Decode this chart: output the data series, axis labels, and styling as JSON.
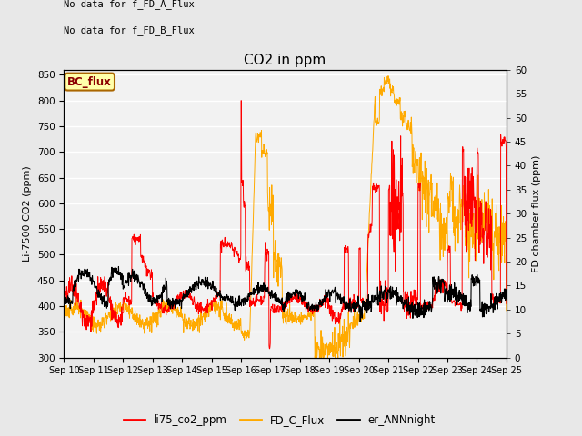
{
  "title": "CO2 in ppm",
  "ylabel_left": "Li-7500 CO2 (ppm)",
  "ylabel_right": "FD chamber flux (ppm)",
  "ylim_left": [
    300,
    860
  ],
  "ylim_right": [
    0,
    60
  ],
  "yticks_left": [
    300,
    350,
    400,
    450,
    500,
    550,
    600,
    650,
    700,
    750,
    800,
    850
  ],
  "yticks_right": [
    0,
    5,
    10,
    15,
    20,
    25,
    30,
    35,
    40,
    45,
    50,
    55,
    60
  ],
  "xtick_labels": [
    "Sep 10",
    "Sep 11",
    "Sep 12",
    "Sep 13",
    "Sep 14",
    "Sep 15",
    "Sep 16",
    "Sep 17",
    "Sep 18",
    "Sep 19",
    "Sep 20",
    "Sep 21",
    "Sep 22",
    "Sep 23",
    "Sep 24",
    "Sep 25"
  ],
  "text_upper_left": [
    "No data for f_FD_A_Flux",
    "No data for f_FD_B_Flux"
  ],
  "legend_box_text": "BC_flux",
  "legend_box_facecolor": "#ffffaa",
  "legend_box_edgecolor": "#aa6600",
  "color_red": "#ff0000",
  "color_orange": "#ffaa00",
  "color_black": "#000000",
  "bg_color": "#e8e8e8",
  "plot_bg_color": "#f2f2f2",
  "legend_labels": [
    "li75_co2_ppm",
    "FD_C_Flux",
    "er_ANNnight"
  ],
  "legend_colors": [
    "#ff0000",
    "#ffaa00",
    "#000000"
  ],
  "n_points": 1500,
  "figsize": [
    6.4,
    4.8
  ],
  "dpi": 100
}
